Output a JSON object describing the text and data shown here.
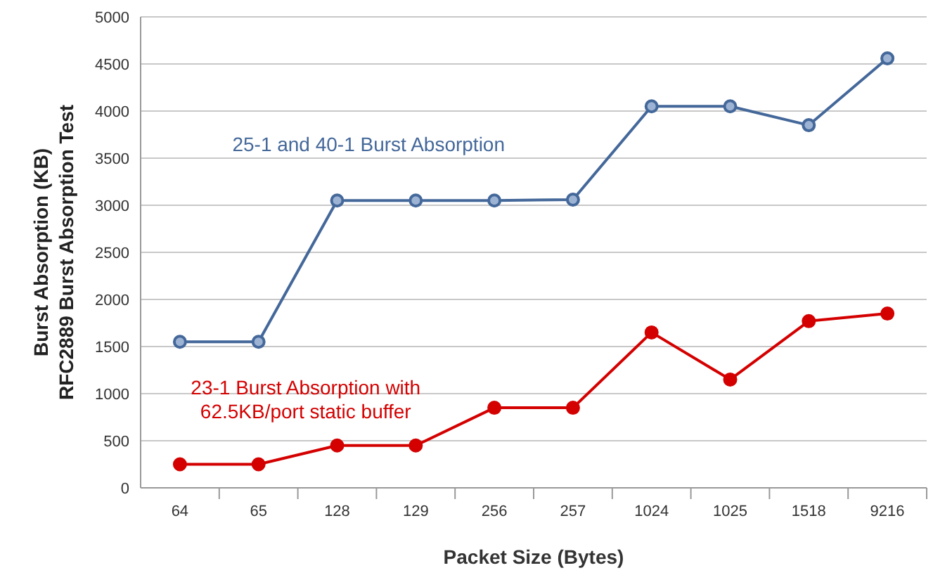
{
  "chart_data": {
    "type": "line",
    "xlabel": "Packet Size (Bytes)",
    "ylabel": "Burst Absorption  (KB)\nRFC2889 Burst Absorption Test",
    "categories": [
      "64",
      "65",
      "128",
      "129",
      "256",
      "257",
      "1024",
      "1025",
      "1518",
      "9216"
    ],
    "series": [
      {
        "name": "25-1 and 40-1 Burst Absorption",
        "color": "#44689a",
        "values": [
          1550,
          1550,
          3050,
          3050,
          3050,
          3060,
          4050,
          4050,
          3850,
          4560
        ]
      },
      {
        "name": "23-1 Burst Absorption with 62.5KB/port static buffer",
        "color": "#d40000",
        "values": [
          250,
          250,
          450,
          450,
          850,
          850,
          1650,
          1150,
          1770,
          1850
        ]
      }
    ],
    "ylim": [
      0,
      5000
    ],
    "yticks": [
      0,
      500,
      1000,
      1500,
      2000,
      2500,
      3000,
      3500,
      4000,
      4500,
      5000
    ],
    "grid": "y",
    "marker": "circle",
    "line_style": "solid"
  }
}
